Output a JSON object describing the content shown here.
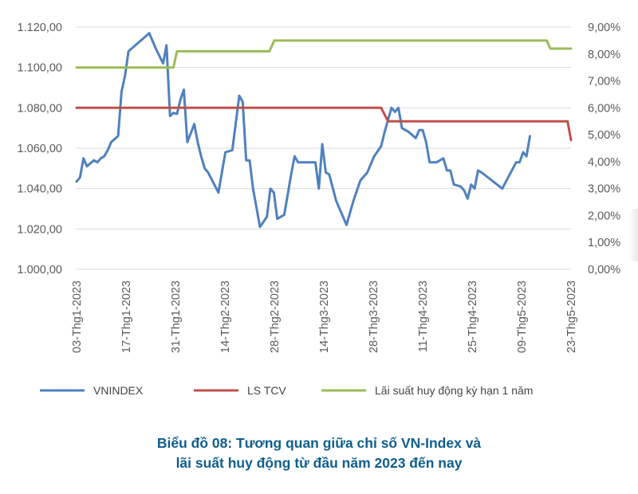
{
  "chart_data": {
    "type": "line",
    "title": "",
    "legend_position": "bottom",
    "left_axis": {
      "ylim": [
        1000,
        1120
      ],
      "ticks": [
        1000,
        1020,
        1040,
        1060,
        1080,
        1100,
        1120
      ],
      "tick_labels": [
        "1.000,00",
        "1.020,00",
        "1.040,00",
        "1.060,00",
        "1.080,00",
        "1.100,00",
        "1.120,00"
      ]
    },
    "right_axis": {
      "ylim": [
        0,
        9
      ],
      "ticks": [
        0,
        1,
        2,
        3,
        4,
        5,
        6,
        7,
        8,
        9
      ],
      "tick_labels": [
        "0,00%",
        "1,00%",
        "2,00%",
        "3,00%",
        "4,00%",
        "5,00%",
        "6,00%",
        "7,00%",
        "8,00%",
        "9,00%"
      ]
    },
    "x_axis": {
      "range": [
        0,
        100
      ],
      "ticks": [
        0,
        10,
        20,
        30,
        40,
        50,
        60,
        70,
        80,
        90,
        100
      ],
      "tick_labels": [
        "03-Thg1-2023",
        "17-Thg1-2023",
        "31-Thg1-2023",
        "14-Thg2-2023",
        "28-Thg2-2023",
        "14-Thg3-2023",
        "28-Thg3-2023",
        "11-Thg4-2023",
        "25-Thg4-2023",
        "09-Thg5-2023",
        "23-Thg5-2023"
      ]
    },
    "grid": true,
    "series": [
      {
        "name": "VNINDEX",
        "axis": "left",
        "color": "#4f81bd",
        "x": [
          0,
          0.7,
          1.4,
          2.1,
          3.5,
          4.2,
          4.9,
          5.6,
          6.3,
          7.0,
          8.4,
          9.1,
          9.8,
          10.5,
          11.9,
          13.3,
          14.7,
          16.1,
          17.5,
          18.2,
          18.9,
          19.6,
          20.3,
          21.0,
          21.7,
          22.4,
          23.8,
          24.5,
          25.2,
          25.9,
          26.6,
          28.7,
          30.1,
          31.5,
          32.9,
          33.6,
          34.3,
          35.0,
          35.7,
          37.1,
          38.5,
          39.2,
          39.9,
          40.6,
          41.3,
          42.0,
          43.4,
          44.1,
          44.8,
          46.2,
          48.3,
          49.0,
          49.7,
          50.4,
          51.1,
          52.5,
          54.6,
          56.0,
          57.4,
          58.8,
          60.2,
          61.6,
          62.3,
          63.0,
          63.7,
          64.4,
          65.1,
          65.8,
          67.2,
          68.6,
          69.3,
          70.0,
          70.7,
          71.4,
          72.8,
          74.2,
          74.9,
          75.6,
          76.3,
          77.7,
          78.4,
          79.1,
          79.8,
          80.5,
          81.2,
          81.9,
          84.0,
          86.1,
          88.9,
          89.6,
          90.3,
          91.0,
          91.7
        ],
        "values": [
          1043.5,
          1045.5,
          1055,
          1051,
          1054,
          1053,
          1055,
          1056,
          1059,
          1063,
          1066,
          1088,
          1096,
          1108,
          1111,
          1114,
          1117,
          1109,
          1102,
          1111,
          1076,
          1077.5,
          1077,
          1084,
          1089,
          1063,
          1072,
          1063,
          1056,
          1050,
          1048,
          1038,
          1058,
          1059,
          1086,
          1083,
          1054,
          1054,
          1040,
          1021,
          1026,
          1040,
          1038,
          1025,
          1026,
          1027,
          1047,
          1056,
          1053,
          1053,
          1053,
          1040,
          1062,
          1048,
          1047,
          1034,
          1022,
          1034,
          1044,
          1048,
          1056,
          1061,
          1068,
          1074,
          1080,
          1078,
          1080,
          1070,
          1068,
          1065,
          1069,
          1069,
          1063,
          1053,
          1053,
          1055,
          1049,
          1049,
          1042,
          1041,
          1039,
          1035,
          1042,
          1040,
          1049,
          1048,
          1044,
          1040,
          1053,
          1053,
          1058,
          1056,
          1066
        ]
      },
      {
        "name": "LS TCV",
        "axis": "right",
        "color": "#c0504d",
        "x": [
          0,
          13,
          26,
          39,
          52,
          61.6,
          63,
          65,
          70,
          80,
          90,
          99.3,
          100
        ],
        "values": [
          6.0,
          6.0,
          6.0,
          6.0,
          6.0,
          6.0,
          5.5,
          5.5,
          5.5,
          5.5,
          5.5,
          5.5,
          4.8
        ]
      },
      {
        "name": "Lãi suất huy động kỳ hạn 1 năm",
        "axis": "right",
        "color": "#9bbb59",
        "x": [
          0,
          10,
          19.6,
          20.3,
          30,
          39,
          40,
          50,
          60,
          70,
          80,
          90,
          95.1,
          95.8,
          100
        ],
        "values": [
          7.5,
          7.5,
          7.5,
          8.1,
          8.1,
          8.1,
          8.5,
          8.5,
          8.5,
          8.5,
          8.5,
          8.5,
          8.5,
          8.2,
          8.2
        ]
      }
    ]
  },
  "caption": {
    "line1": "Biểu đồ 08: Tương quan giữa chỉ số VN-Index và",
    "line2": "lãi suất huy động từ đầu năm 2023 đến nay"
  }
}
